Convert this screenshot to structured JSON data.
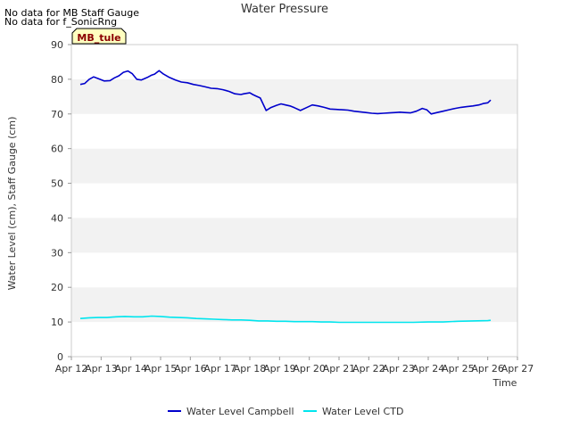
{
  "notes": [
    "No data for MB Staff Gauge",
    "No data for f_SonicRng"
  ],
  "site_label": "MB_tule",
  "chart_data": {
    "type": "line",
    "title": "Water Pressure",
    "xlabel": "Time",
    "ylabel": "Water Level (cm), Staff Gauge (cm)",
    "ylim": [
      0,
      90
    ],
    "yticks": [
      0,
      10,
      20,
      30,
      40,
      50,
      60,
      70,
      80,
      90
    ],
    "xlim": [
      12,
      27
    ],
    "xticks": [
      12,
      13,
      14,
      15,
      16,
      17,
      18,
      19,
      20,
      21,
      22,
      23,
      24,
      25,
      26,
      27
    ],
    "xtick_labels": [
      "Apr 12",
      "Apr 13",
      "Apr 14",
      "Apr 15",
      "Apr 16",
      "Apr 17",
      "Apr 18",
      "Apr 19",
      "Apr 20",
      "Apr 21",
      "Apr 22",
      "Apr 23",
      "Apr 24",
      "Apr 25",
      "Apr 26",
      "Apr 27"
    ],
    "grid": "horizontal bands",
    "legend_position": "bottom",
    "series": [
      {
        "name": "Water Level Campbell",
        "color": "#0000cc",
        "x": [
          12.3,
          12.45,
          12.6,
          12.75,
          12.9,
          13.1,
          13.3,
          13.45,
          13.6,
          13.75,
          13.9,
          14.05,
          14.2,
          14.35,
          14.55,
          14.7,
          14.8,
          14.95,
          15.1,
          15.3,
          15.5,
          15.7,
          15.9,
          16.1,
          16.3,
          16.5,
          16.7,
          16.9,
          17.1,
          17.3,
          17.5,
          17.7,
          17.8,
          18.0,
          18.1,
          18.2,
          18.35,
          18.55,
          18.7,
          18.9,
          19.05,
          19.2,
          19.35,
          19.5,
          19.7,
          19.9,
          20.1,
          20.3,
          20.5,
          20.7,
          20.9,
          21.1,
          21.3,
          21.5,
          21.7,
          21.9,
          22.1,
          22.3,
          22.5,
          22.7,
          22.9,
          23.05,
          23.2,
          23.4,
          23.6,
          23.8,
          23.95,
          24.1,
          24.3,
          24.5,
          24.7,
          24.9,
          25.1,
          25.3,
          25.5,
          25.7,
          25.85,
          26.0,
          26.1
        ],
        "values": [
          78.5,
          78.8,
          80.0,
          80.7,
          80.2,
          79.5,
          79.6,
          80.4,
          81.0,
          82.0,
          82.4,
          81.6,
          80.0,
          79.8,
          80.5,
          81.2,
          81.5,
          82.5,
          81.5,
          80.5,
          79.8,
          79.2,
          79.0,
          78.5,
          78.2,
          77.8,
          77.4,
          77.3,
          77.0,
          76.5,
          75.8,
          75.6,
          75.8,
          76.1,
          75.6,
          75.2,
          74.6,
          71.0,
          71.8,
          72.5,
          72.9,
          72.6,
          72.3,
          71.8,
          71.0,
          71.8,
          72.6,
          72.3,
          71.9,
          71.4,
          71.3,
          71.2,
          71.1,
          70.8,
          70.6,
          70.4,
          70.2,
          70.1,
          70.2,
          70.3,
          70.4,
          70.5,
          70.4,
          70.3,
          70.8,
          71.6,
          71.2,
          70.0,
          70.4,
          70.8,
          71.2,
          71.6,
          71.9,
          72.1,
          72.3,
          72.6,
          73.0,
          73.2,
          74.0
        ]
      },
      {
        "name": "Water Level CTD",
        "color": "#00e5ee",
        "x": [
          12.3,
          12.6,
          12.9,
          13.2,
          13.5,
          13.8,
          14.1,
          14.4,
          14.7,
          15.0,
          15.3,
          15.6,
          15.9,
          16.2,
          16.5,
          16.8,
          17.1,
          17.4,
          17.7,
          18.0,
          18.3,
          18.6,
          18.9,
          19.2,
          19.5,
          19.8,
          20.1,
          20.4,
          20.7,
          21.0,
          21.5,
          22.0,
          22.5,
          23.0,
          23.5,
          24.0,
          24.5,
          25.0,
          25.5,
          26.0,
          26.1
        ],
        "values": [
          11.0,
          11.2,
          11.3,
          11.3,
          11.5,
          11.6,
          11.5,
          11.5,
          11.7,
          11.6,
          11.4,
          11.3,
          11.2,
          11.0,
          10.9,
          10.8,
          10.7,
          10.6,
          10.6,
          10.5,
          10.3,
          10.3,
          10.2,
          10.2,
          10.1,
          10.1,
          10.1,
          10.0,
          10.0,
          9.9,
          9.9,
          9.9,
          9.9,
          9.9,
          9.9,
          10.0,
          10.0,
          10.2,
          10.3,
          10.4,
          10.5
        ]
      }
    ]
  }
}
